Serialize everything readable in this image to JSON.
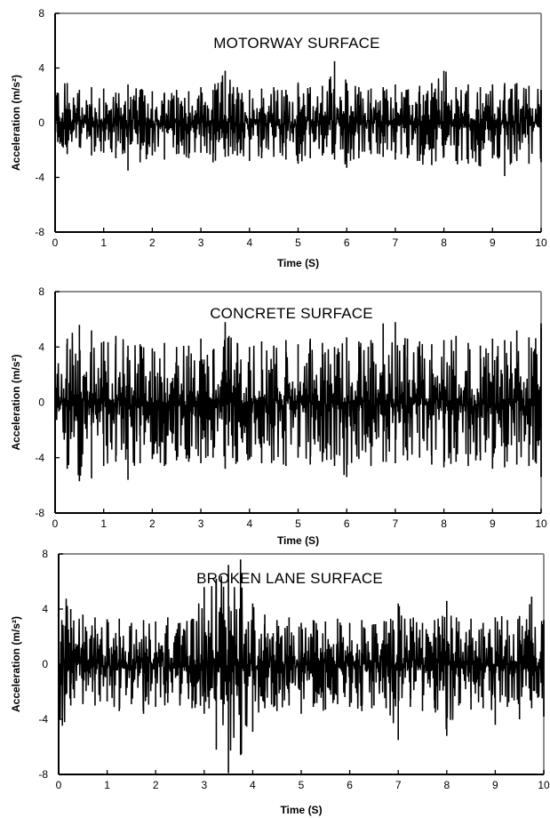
{
  "chart_data": [
    {
      "type": "line",
      "title": "MOTORWAY SURFACE",
      "xlabel": "Time (S)",
      "ylabel": "Acceleration (m/s²)",
      "xlim": [
        0,
        10
      ],
      "ylim": [
        -8,
        8
      ],
      "xticks": [
        "0",
        "1",
        "2",
        "3",
        "4",
        "5",
        "6",
        "7",
        "8",
        "9",
        "10"
      ],
      "yticks": [
        "8",
        "4",
        "0",
        "-4",
        "-8"
      ],
      "grid": false,
      "series": [
        {
          "x": [
            0,
            0.25,
            0.5,
            0.75,
            1,
            1.25,
            1.5,
            1.75,
            2,
            2.25,
            2.5,
            2.75,
            3,
            3.25,
            3.5,
            3.75,
            4,
            4.25,
            4.5,
            4.75,
            5,
            5.25,
            5.5,
            5.75,
            6,
            6.25,
            6.5,
            6.75,
            7,
            7.25,
            7.5,
            7.75,
            8,
            8.25,
            8.5,
            8.75,
            9,
            9.25,
            9.5,
            9.75,
            10
          ],
          "y_max": [
            3.6,
            2.9,
            2.4,
            2.6,
            2.5,
            2.2,
            2.8,
            2.4,
            2.3,
            2.2,
            2.4,
            2.3,
            2.6,
            2.4,
            3.8,
            2.6,
            2.4,
            2.5,
            2.6,
            2.4,
            2.8,
            2.6,
            2.7,
            4.5,
            2.9,
            2.6,
            2.5,
            2.6,
            2.8,
            2.4,
            2.7,
            2.9,
            3.8,
            2.6,
            2.8,
            2.6,
            2.8,
            2.9,
            2.9,
            2.7,
            2.4
          ],
          "y_min": [
            -2.1,
            -2.3,
            -1.8,
            -2.4,
            -2.2,
            -2.6,
            -3.5,
            -2.9,
            -2.4,
            -2.7,
            -2.3,
            -2.6,
            -2.2,
            -2.9,
            -2.5,
            -2.4,
            -2.8,
            -2.6,
            -2.5,
            -2.7,
            -3.0,
            -2.6,
            -2.4,
            -2.7,
            -3.3,
            -2.6,
            -2.3,
            -2.5,
            -2.7,
            -2.6,
            -2.8,
            -3.1,
            -2.5,
            -2.8,
            -3.0,
            -3.2,
            -2.6,
            -3.9,
            -2.8,
            -3.0,
            -2.9
          ]
        }
      ]
    },
    {
      "type": "line",
      "title": "CONCRETE SURFACE",
      "xlabel": "Time (S)",
      "ylabel": "Acceleration (m/s²)",
      "xlim": [
        0,
        10
      ],
      "ylim": [
        -8,
        8
      ],
      "xticks": [
        "0",
        "1",
        "2",
        "3",
        "4",
        "5",
        "6",
        "7",
        "8",
        "9",
        "10"
      ],
      "yticks": [
        "8",
        "4",
        "0",
        "-4",
        "-8"
      ],
      "grid": false,
      "series": [
        {
          "x": [
            0,
            0.25,
            0.5,
            0.75,
            1,
            1.25,
            1.5,
            1.75,
            2,
            2.25,
            2.5,
            2.75,
            3,
            3.25,
            3.5,
            3.75,
            4,
            4.25,
            4.5,
            4.75,
            5,
            5.25,
            5.5,
            5.75,
            6,
            6.25,
            6.5,
            6.75,
            7,
            7.25,
            7.5,
            7.75,
            8,
            8.25,
            8.5,
            8.75,
            9,
            9.25,
            9.5,
            9.75,
            10
          ],
          "y_max": [
            3.2,
            4.6,
            5.6,
            5.2,
            4.4,
            4.8,
            4.1,
            4.2,
            3.9,
            4.3,
            4.0,
            4.1,
            4.6,
            3.8,
            5.8,
            4.3,
            4.0,
            4.4,
            4.1,
            4.5,
            4.2,
            4.6,
            4.3,
            4.0,
            4.7,
            4.4,
            4.5,
            5.7,
            5.8,
            4.6,
            4.4,
            4.2,
            4.5,
            4.8,
            4.3,
            4.1,
            4.6,
            4.5,
            5.2,
            4.7,
            5.7
          ],
          "y_min": [
            -2.6,
            -4.8,
            -5.7,
            -5.5,
            -4.6,
            -4.3,
            -5.6,
            -4.4,
            -4.1,
            -4.6,
            -4.2,
            -4.3,
            -4.4,
            -4.0,
            -4.8,
            -4.3,
            -4.1,
            -4.4,
            -4.2,
            -4.6,
            -4.0,
            -4.5,
            -4.3,
            -4.6,
            -5.4,
            -4.1,
            -4.6,
            -4.3,
            -4.4,
            -4.2,
            -4.0,
            -4.5,
            -4.7,
            -4.3,
            -4.6,
            -4.2,
            -4.8,
            -4.7,
            -4.5,
            -4.6,
            -5.4
          ]
        }
      ]
    },
    {
      "type": "line",
      "title": "BROKEN LANE SURFACE",
      "xlabel": "Time (S)",
      "ylabel": "Acceleration (m/s²)",
      "xlim": [
        0,
        10
      ],
      "ylim": [
        -8,
        8
      ],
      "xticks": [
        "0",
        "1",
        "2",
        "3",
        "4",
        "5",
        "6",
        "7",
        "8",
        "9",
        "10"
      ],
      "yticks": [
        "8",
        "4",
        "0",
        "-4",
        "-8"
      ],
      "grid": false,
      "series": [
        {
          "x": [
            0,
            0.25,
            0.5,
            0.75,
            1,
            1.25,
            1.5,
            1.75,
            2,
            2.25,
            2.5,
            2.75,
            3,
            3.25,
            3.5,
            3.75,
            4,
            4.25,
            4.5,
            4.75,
            5,
            5.25,
            5.5,
            5.75,
            6,
            6.25,
            6.5,
            6.75,
            7,
            7.25,
            7.5,
            7.75,
            8,
            8.25,
            8.5,
            8.75,
            9,
            9.25,
            9.5,
            9.75,
            10
          ],
          "y_max": [
            5.8,
            4.0,
            3.6,
            3.4,
            3.2,
            3.3,
            3.0,
            3.2,
            3.1,
            3.4,
            3.0,
            3.3,
            5.6,
            6.2,
            7.2,
            7.6,
            4.4,
            3.6,
            3.2,
            3.4,
            3.0,
            3.2,
            3.1,
            3.3,
            3.0,
            3.2,
            2.9,
            3.1,
            4.4,
            3.3,
            3.0,
            3.2,
            4.6,
            3.1,
            3.3,
            3.0,
            3.4,
            3.2,
            3.5,
            4.9,
            3.2
          ],
          "y_min": [
            -5.6,
            -3.0,
            -2.8,
            -3.0,
            -2.7,
            -3.4,
            -2.9,
            -3.6,
            -3.1,
            -2.8,
            -3.0,
            -3.2,
            -3.6,
            -6.2,
            -7.9,
            -6.6,
            -4.9,
            -3.2,
            -3.4,
            -3.0,
            -3.6,
            -3.1,
            -3.3,
            -2.9,
            -3.1,
            -3.4,
            -3.0,
            -3.2,
            -5.5,
            -3.1,
            -3.4,
            -3.2,
            -5.2,
            -3.0,
            -3.3,
            -3.2,
            -4.4,
            -3.1,
            -4.0,
            -3.2,
            -3.8
          ]
        }
      ]
    }
  ]
}
